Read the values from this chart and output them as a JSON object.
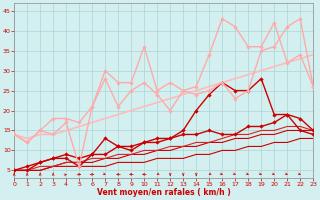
{
  "x": [
    0,
    1,
    2,
    3,
    4,
    5,
    6,
    7,
    8,
    9,
    10,
    11,
    12,
    13,
    14,
    15,
    16,
    17,
    18,
    19,
    20,
    21,
    22,
    23
  ],
  "lines": [
    {
      "y": [
        5,
        5,
        5,
        6,
        6,
        6,
        6,
        6,
        7,
        7,
        7,
        8,
        8,
        8,
        9,
        9,
        10,
        10,
        11,
        11,
        12,
        12,
        13,
        13
      ],
      "color": "#cc0000",
      "lw": 0.8,
      "marker": null,
      "ms": 0,
      "zorder": 2
    },
    {
      "y": [
        5,
        5,
        5,
        6,
        7,
        7,
        7,
        8,
        8,
        9,
        9,
        10,
        10,
        11,
        11,
        12,
        12,
        13,
        13,
        14,
        14,
        15,
        15,
        15
      ],
      "color": "#cc0000",
      "lw": 0.8,
      "marker": null,
      "ms": 0,
      "zorder": 2
    },
    {
      "y": [
        5,
        5,
        6,
        6,
        7,
        7,
        8,
        8,
        9,
        9,
        10,
        10,
        11,
        11,
        12,
        12,
        13,
        14,
        14,
        15,
        15,
        16,
        16,
        15
      ],
      "color": "#dd2222",
      "lw": 0.8,
      "marker": null,
      "ms": 0,
      "zorder": 2
    },
    {
      "y": [
        5,
        6,
        7,
        8,
        8,
        6,
        9,
        9,
        11,
        10,
        12,
        12,
        13,
        14,
        14,
        15,
        14,
        14,
        16,
        16,
        17,
        19,
        18,
        15
      ],
      "color": "#cc0000",
      "lw": 1.0,
      "marker": "D",
      "ms": 2.2,
      "zorder": 3
    },
    {
      "y": [
        5,
        5,
        7,
        8,
        9,
        8,
        9,
        13,
        11,
        11,
        12,
        13,
        13,
        15,
        20,
        24,
        27,
        25,
        25,
        28,
        19,
        19,
        15,
        14
      ],
      "color": "#cc0000",
      "lw": 1.0,
      "marker": "D",
      "ms": 2.2,
      "zorder": 3
    },
    {
      "y": [
        14,
        12,
        15,
        14,
        17,
        6,
        21,
        28,
        21,
        25,
        27,
        24,
        20,
        25,
        24,
        25,
        27,
        23,
        25,
        35,
        36,
        41,
        43,
        26
      ],
      "color": "#ffaaaa",
      "lw": 1.0,
      "marker": "D",
      "ms": 2.2,
      "zorder": 3
    },
    {
      "y": [
        14,
        12,
        15,
        18,
        18,
        17,
        21,
        30,
        27,
        27,
        36,
        25,
        27,
        25,
        26,
        34,
        43,
        41,
        36,
        36,
        42,
        32,
        34,
        26
      ],
      "color": "#ffaaaa",
      "lw": 1.0,
      "marker": "D",
      "ms": 2.2,
      "zorder": 3
    },
    {
      "y": [
        14,
        13,
        14,
        14,
        15,
        16,
        17,
        18,
        19,
        20,
        21,
        22,
        23,
        24,
        25,
        26,
        27,
        28,
        29,
        30,
        31,
        32,
        33,
        34
      ],
      "color": "#ffbbbb",
      "lw": 1.2,
      "marker": null,
      "ms": 0,
      "zorder": 2
    }
  ],
  "wind_symbols": [
    {
      "x": 0,
      "type": "up"
    },
    {
      "x": 1,
      "type": "up"
    },
    {
      "x": 2,
      "type": "up"
    },
    {
      "x": 3,
      "type": "up"
    },
    {
      "x": 4,
      "type": "upright"
    },
    {
      "x": 5,
      "type": "right"
    },
    {
      "x": 6,
      "type": "right"
    },
    {
      "x": 7,
      "type": "downright"
    },
    {
      "x": 8,
      "type": "left"
    },
    {
      "x": 9,
      "type": "left"
    },
    {
      "x": 10,
      "type": "left"
    },
    {
      "x": 11,
      "type": "downleft"
    },
    {
      "x": 12,
      "type": "down"
    },
    {
      "x": 13,
      "type": "down"
    },
    {
      "x": 14,
      "type": "down"
    },
    {
      "x": 15,
      "type": "downleft"
    },
    {
      "x": 16,
      "type": "downright"
    },
    {
      "x": 17,
      "type": "downright"
    },
    {
      "x": 18,
      "type": "downright"
    },
    {
      "x": 19,
      "type": "downright"
    },
    {
      "x": 20,
      "type": "downright"
    },
    {
      "x": 21,
      "type": "downright"
    },
    {
      "x": 22,
      "type": "downright"
    },
    {
      "x": 23,
      "type": "downright"
    }
  ],
  "xlim": [
    0,
    23
  ],
  "ylim": [
    3,
    47
  ],
  "yticks": [
    5,
    10,
    15,
    20,
    25,
    30,
    35,
    40,
    45
  ],
  "xticks": [
    0,
    1,
    2,
    3,
    4,
    5,
    6,
    7,
    8,
    9,
    10,
    11,
    12,
    13,
    14,
    15,
    16,
    17,
    18,
    19,
    20,
    21,
    22,
    23
  ],
  "xlabel": "Vent moyen/en rafales ( km/h )",
  "bg_color": "#d4efef",
  "grid_color": "#aad4d4",
  "text_color": "#cc0000",
  "spine_color": "#888888"
}
